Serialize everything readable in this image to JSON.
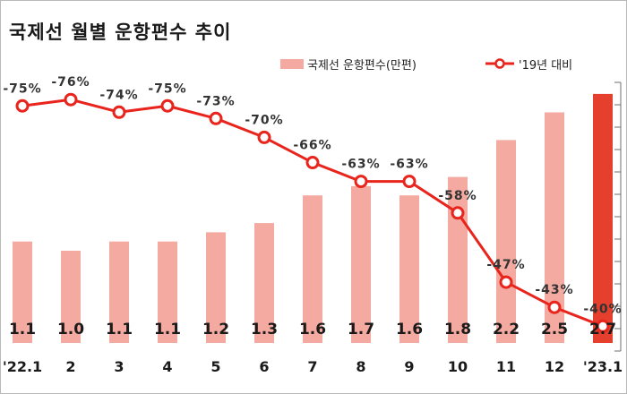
{
  "title": "국제선 월별 운항편수 추이",
  "legend": {
    "bar_label": "국제선 운항편수(만편)",
    "line_label": "'19년 대비"
  },
  "colors": {
    "bar": "#f4aaa0",
    "bar_highlight": "#e5402e",
    "line": "#e8241c",
    "marker_fill": "#ffffff"
  },
  "chart_data": {
    "type": "bar",
    "categories": [
      "'22.1",
      "2",
      "3",
      "4",
      "5",
      "6",
      "7",
      "8",
      "9",
      "10",
      "11",
      "12",
      "'23.1"
    ],
    "series": [
      {
        "name": "국제선 운항편수(만편)",
        "type": "bar",
        "values": [
          1.1,
          1.0,
          1.1,
          1.1,
          1.2,
          1.3,
          1.6,
          1.7,
          1.6,
          1.8,
          2.2,
          2.5,
          2.7
        ],
        "labels": [
          "1.1",
          "1.0",
          "1.1",
          "1.1",
          "1.2",
          "1.3",
          "1.6",
          "1.7",
          "1.6",
          "1.8",
          "2.2",
          "2.5",
          "2.7"
        ]
      },
      {
        "name": "'19년 대비",
        "type": "line",
        "values": [
          -75,
          -76,
          -74,
          -75,
          -73,
          -70,
          -66,
          -63,
          -63,
          -58,
          -47,
          -43,
          -40
        ],
        "labels": [
          "-75%",
          "-76%",
          "-74%",
          "-75%",
          "-73%",
          "-70%",
          "-66%",
          "-63%",
          "-63%",
          "-58%",
          "-47%",
          "-43%",
          "-40%"
        ]
      }
    ],
    "highlight_index": 12,
    "grid": false,
    "legend_position": "top-right"
  }
}
